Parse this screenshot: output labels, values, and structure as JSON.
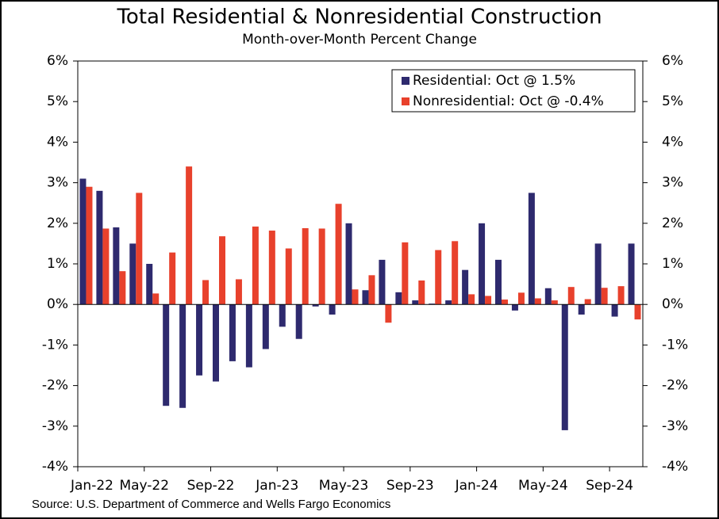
{
  "chart_data": {
    "type": "bar",
    "title": "Total Residential & Nonresidential Construction",
    "subtitle": "Month-over-Month Percent Change",
    "source": "Source: U.S. Department of Commerce and Wells Fargo Economics",
    "categories": [
      "Jan-22",
      null,
      null,
      null,
      "May-22",
      null,
      null,
      null,
      "Sep-22",
      null,
      null,
      null,
      "Jan-23",
      null,
      null,
      null,
      "May-23",
      null,
      null,
      null,
      "Sep-23",
      null,
      null,
      null,
      "Jan-24",
      null,
      null,
      null,
      "May-24",
      null,
      null,
      null,
      "Sep-24",
      null
    ],
    "series": [
      {
        "name": "Residential: Oct @ 1.5%",
        "color": "#2e2a6e",
        "values": [
          3.1,
          2.8,
          1.9,
          1.5,
          1.0,
          -2.5,
          -2.55,
          -1.75,
          -1.9,
          -1.4,
          -1.55,
          -1.1,
          -0.55,
          -0.85,
          -0.05,
          -0.25,
          2.0,
          0.35,
          1.1,
          0.3,
          0.1,
          0.02,
          0.1,
          0.85,
          2.0,
          1.1,
          -0.15,
          2.75,
          0.4,
          -3.1,
          -0.25,
          1.5,
          -0.3,
          1.5
        ]
      },
      {
        "name": "Nonresidential: Oct @ -0.4%",
        "color": "#e8412c",
        "values": [
          2.9,
          1.87,
          0.82,
          2.75,
          0.27,
          1.28,
          3.4,
          0.6,
          1.68,
          0.62,
          1.92,
          1.82,
          1.38,
          1.88,
          1.87,
          2.48,
          0.37,
          0.72,
          -0.45,
          1.53,
          0.59,
          1.34,
          1.56,
          0.25,
          0.21,
          0.12,
          0.29,
          0.15,
          0.1,
          0.43,
          0.13,
          0.41,
          0.45,
          -0.37
        ]
      }
    ],
    "ylim": [
      -4,
      6
    ],
    "yticks": [
      {
        "value": -4,
        "label": "-4%"
      },
      {
        "value": -3,
        "label": "-3%"
      },
      {
        "value": -2,
        "label": "-2%"
      },
      {
        "value": -1,
        "label": "-1%"
      },
      {
        "value": 0,
        "label": "0%"
      },
      {
        "value": 1,
        "label": "1%"
      },
      {
        "value": 2,
        "label": "2%"
      },
      {
        "value": 3,
        "label": "3%"
      },
      {
        "value": 4,
        "label": "4%"
      },
      {
        "value": 5,
        "label": "5%"
      },
      {
        "value": 6,
        "label": "6%"
      }
    ],
    "y2lim": [
      -4,
      6
    ],
    "y2ticks": [
      {
        "value": -4,
        "label": "-4%"
      },
      {
        "value": -3,
        "label": "-3%"
      },
      {
        "value": -2,
        "label": "-2%"
      },
      {
        "value": -1,
        "label": "-1%"
      },
      {
        "value": 0,
        "label": "0%"
      },
      {
        "value": 1,
        "label": "1%"
      },
      {
        "value": 2,
        "label": "2%"
      },
      {
        "value": 3,
        "label": "3%"
      },
      {
        "value": 4,
        "label": "4%"
      },
      {
        "value": 5,
        "label": "5%"
      },
      {
        "value": 6,
        "label": "6%"
      }
    ],
    "grid": false,
    "legend": "top-right"
  }
}
